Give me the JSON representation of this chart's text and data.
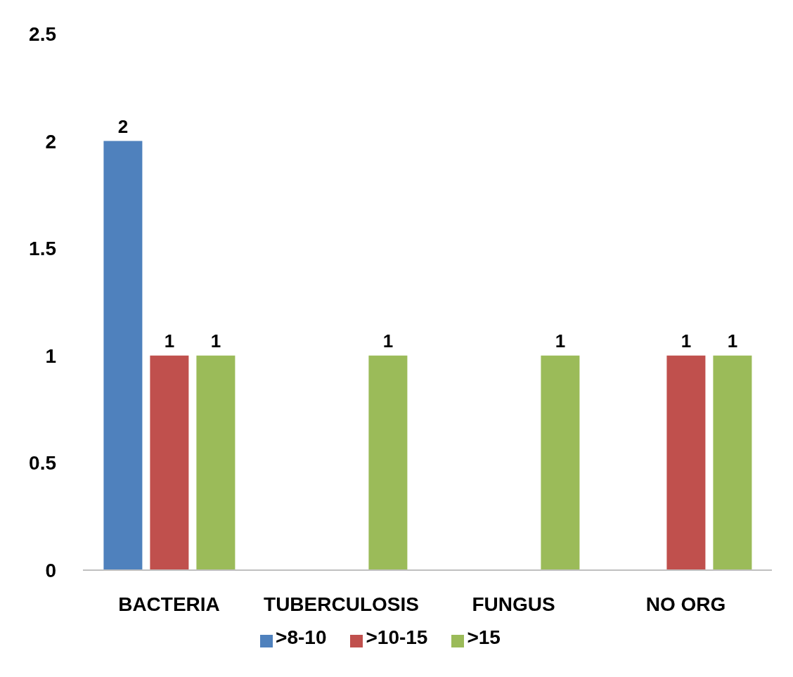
{
  "chart_data": {
    "type": "bar",
    "categories": [
      "BACTERIA",
      "TUBERCULOSIS",
      "FUNGUS",
      "NO ORG"
    ],
    "series": [
      {
        "name": ">8-10",
        "color": "#4f81bd",
        "values": [
          2,
          null,
          null,
          null
        ]
      },
      {
        "name": ">10-15",
        "color": "#c0504d",
        "values": [
          1,
          null,
          null,
          1
        ]
      },
      {
        "name": ">15",
        "color": "#9bbb59",
        "values": [
          1,
          1,
          1,
          1
        ]
      }
    ],
    "ylim": [
      0,
      2.5
    ],
    "yticks": [
      0,
      0.5,
      1,
      1.5,
      2,
      2.5
    ],
    "grid": false,
    "legend": "bottom",
    "data_labels": true
  }
}
